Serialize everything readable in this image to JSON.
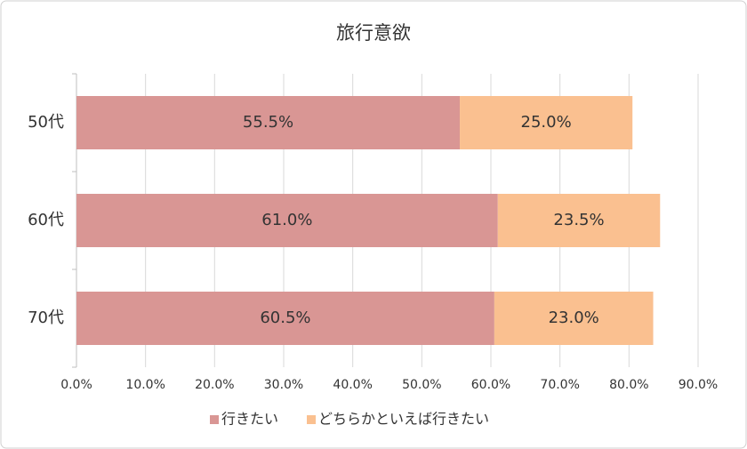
{
  "chart_data": {
    "type": "stacked-barh",
    "title": "旅行意欲",
    "categories": [
      "50代",
      "60代",
      "70代"
    ],
    "series": [
      {
        "name": "行きたい",
        "color": "#d99694",
        "values": [
          55.5,
          61.0,
          60.5
        ],
        "value_labels": [
          "55.5%",
          "61.0%",
          "60.5%"
        ]
      },
      {
        "name": "どちらかといえば行きたい",
        "color": "#fac090",
        "values": [
          25.0,
          23.5,
          23.0
        ],
        "value_labels": [
          "25.0%",
          "23.5%",
          "23.0%"
        ]
      }
    ],
    "xlim": [
      0,
      90
    ],
    "xticks": [
      {
        "value": 0,
        "label": "0.0%"
      },
      {
        "value": 10,
        "label": "10.0%"
      },
      {
        "value": 20,
        "label": "20.0%"
      },
      {
        "value": 30,
        "label": "30.0%"
      },
      {
        "value": 40,
        "label": "40.0%"
      },
      {
        "value": 50,
        "label": "50.0%"
      },
      {
        "value": 60,
        "label": "60.0%"
      },
      {
        "value": 70,
        "label": "70.0%"
      },
      {
        "value": 80,
        "label": "80.0%"
      },
      {
        "value": 90,
        "label": "90.0%"
      }
    ],
    "grid": true,
    "legend": "bottom"
  }
}
